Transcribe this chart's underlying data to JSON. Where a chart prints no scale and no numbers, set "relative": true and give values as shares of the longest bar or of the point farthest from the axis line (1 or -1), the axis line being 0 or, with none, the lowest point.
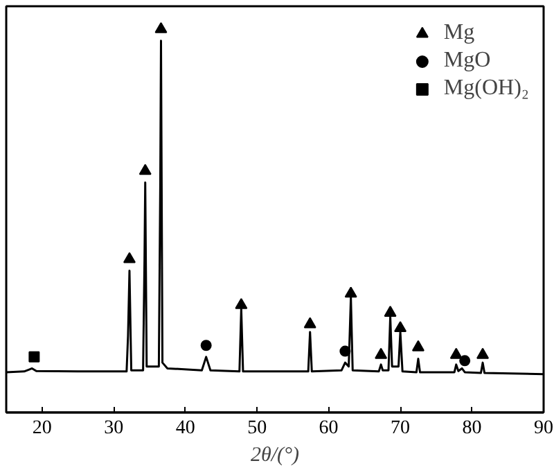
{
  "chart_data": {
    "type": "line",
    "relative": true,
    "xlabel": "2θ/(°)",
    "xlim": [
      15,
      90
    ],
    "xticks": [
      20,
      30,
      40,
      50,
      60,
      70,
      80,
      90
    ],
    "tick_labels": "x",
    "grid": false,
    "legend": "top right",
    "series": [
      {
        "color": "#000000",
        "marker": "none",
        "line_style": "solid",
        "x": [
          15,
          17.5,
          18.2,
          18.6,
          19.2,
          25,
          31.8,
          32.0,
          32.2,
          32.45,
          34.1,
          34.3,
          34.4,
          34.6,
          36.3,
          36.5,
          36.6,
          36.8,
          37.5,
          42.3,
          42.9,
          43.5,
          47.55,
          47.8,
          48.05,
          57.15,
          57.4,
          57.65,
          61.8,
          62.3,
          62.8,
          63.1,
          63.35,
          67.0,
          67.3,
          67.55,
          68.35,
          68.6,
          68.85,
          69.75,
          70.0,
          70.3,
          72.25,
          72.5,
          72.75,
          77.55,
          77.8,
          78.1,
          78.6,
          79.0,
          81.25,
          81.5,
          81.75,
          90
        ],
        "values": [
          0.105,
          0.107,
          0.112,
          0.115,
          0.108,
          0.107,
          0.107,
          0.2,
          0.37,
          0.11,
          0.11,
          0.4,
          0.6,
          0.12,
          0.12,
          0.6,
          0.97,
          0.13,
          0.115,
          0.11,
          0.145,
          0.11,
          0.107,
          0.27,
          0.107,
          0.107,
          0.21,
          0.107,
          0.11,
          0.13,
          0.12,
          0.3,
          0.11,
          0.107,
          0.125,
          0.11,
          0.11,
          0.25,
          0.12,
          0.12,
          0.21,
          0.107,
          0.105,
          0.14,
          0.105,
          0.105,
          0.125,
          0.108,
          0.115,
          0.105,
          0.103,
          0.13,
          0.103,
          0.1
        ]
      },
      {
        "type": "scatter",
        "name": "Mg",
        "color": "#000000",
        "marker": "triangle",
        "x": [
          32.2,
          34.4,
          36.6,
          47.8,
          57.4,
          63.1,
          67.3,
          68.6,
          70.0,
          72.5,
          77.8,
          81.5
        ],
        "values": [
          0.4,
          0.63,
          1.0,
          0.28,
          0.23,
          0.31,
          0.15,
          0.26,
          0.22,
          0.17,
          0.15,
          0.15
        ]
      },
      {
        "type": "scatter",
        "name": "MgO",
        "color": "#000000",
        "marker": "circle",
        "x": [
          42.9,
          62.3,
          79.0
        ],
        "values": [
          0.175,
          0.16,
          0.135
        ]
      },
      {
        "type": "scatter",
        "name": "Mg(OH)₂",
        "color": "#000000",
        "marker": "square",
        "x": [
          18.9
        ],
        "values": [
          0.145
        ]
      }
    ]
  }
}
